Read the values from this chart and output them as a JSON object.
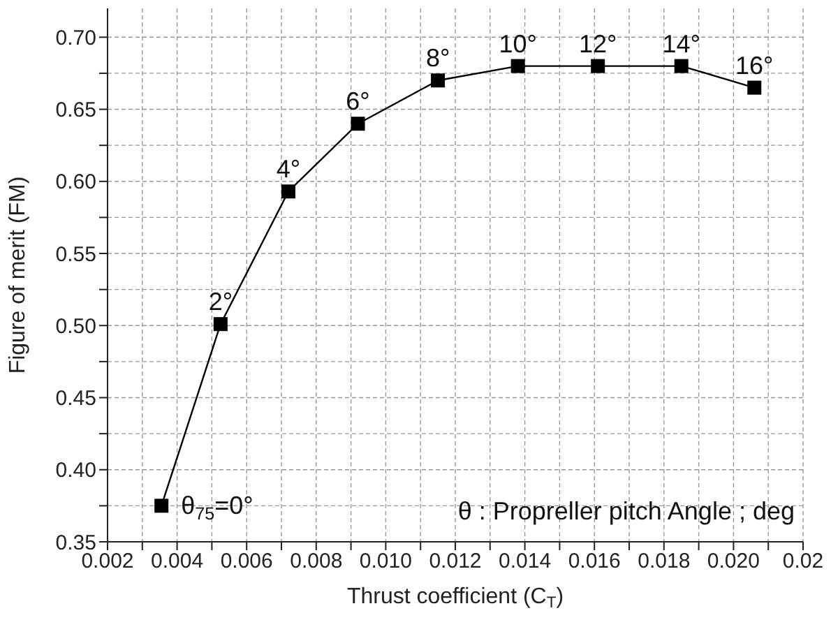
{
  "chart_data": {
    "type": "line",
    "xlabel": "Thrust coefficient (C$_{T}$)",
    "ylabel": "Figure of merit (FM)",
    "x": [
      0.00355,
      0.00525,
      0.0072,
      0.0092,
      0.0115,
      0.0138,
      0.0161,
      0.0185,
      0.0206
    ],
    "series": [
      {
        "color": "#000000",
        "values": [
          0.375,
          0.501,
          0.593,
          0.64,
          0.67,
          0.68,
          0.68,
          0.68,
          0.665
        ]
      }
    ],
    "xlim": [
      0.002,
      0.022
    ],
    "xticks": [
      0.002,
      {
        "value": 0.003,
        "label": null
      },
      0.004,
      {
        "value": 0.005,
        "label": null
      },
      0.006,
      {
        "value": 0.007,
        "label": null
      },
      0.008,
      {
        "value": 0.009,
        "label": null
      },
      {
        "value": 0.01,
        "label": "0.010"
      },
      {
        "value": 0.011,
        "label": null
      },
      0.012,
      {
        "value": 0.013,
        "label": null
      },
      0.014,
      {
        "value": 0.015,
        "label": null
      },
      0.016,
      {
        "value": 0.017,
        "label": null
      },
      0.018,
      {
        "value": 0.019,
        "label": null
      },
      {
        "value": 0.02,
        "label": "0.020"
      },
      {
        "value": 0.021,
        "label": null
      },
      {
        "value": 0.022,
        "label": "0.02"
      }
    ],
    "ylim": [
      0.35,
      0.72
    ],
    "yticks": [
      {
        "value": 0.35,
        "label": "0.35"
      },
      {
        "value": 0.375,
        "label": null
      },
      {
        "value": 0.4,
        "label": "0.40"
      },
      {
        "value": 0.425,
        "label": null
      },
      {
        "value": 0.45,
        "label": "0.45"
      },
      {
        "value": 0.475,
        "label": null
      },
      {
        "value": 0.5,
        "label": "0.50"
      },
      {
        "value": 0.525,
        "label": null
      },
      {
        "value": 0.55,
        "label": "0.55"
      },
      {
        "value": 0.575,
        "label": null
      },
      {
        "value": 0.6,
        "label": "0.60"
      },
      {
        "value": 0.625,
        "label": null
      },
      {
        "value": 0.65,
        "label": "0.65"
      },
      {
        "value": 0.675,
        "label": null
      },
      {
        "value": 0.7,
        "label": "0.70"
      }
    ],
    "grid": true,
    "marker": "square",
    "line_style": "solid",
    "annotations": [
      {
        "text": "θ$_{75}$=0°",
        "x": 0.00355,
        "y": 0.375
      },
      {
        "text": "2°",
        "x": 0.00525,
        "y": 0.501
      },
      {
        "text": "4°",
        "x": 0.0072,
        "y": 0.593
      },
      {
        "text": "6°",
        "x": 0.0092,
        "y": 0.64
      },
      {
        "text": "8°",
        "x": 0.0115,
        "y": 0.67
      },
      {
        "text": "10°",
        "x": 0.0138,
        "y": 0.68
      },
      {
        "text": "12°",
        "x": 0.0161,
        "y": 0.68
      },
      {
        "text": "14°",
        "x": 0.0185,
        "y": 0.68
      },
      {
        "text": "16°",
        "x": 0.0206,
        "y": 0.665
      },
      "θ : Propreller pitch Angle ; deg"
    ]
  }
}
